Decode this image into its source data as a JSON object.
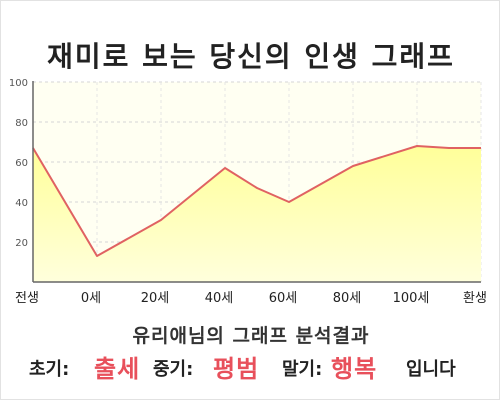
{
  "title": "재미로 보는 당신의 인생 그래프",
  "chart_data": {
    "type": "area",
    "title": "재미로 보는 당신의 인생 그래프",
    "categories": [
      "전생",
      "0세",
      "20세",
      "40세",
      "60세",
      "80세",
      "100세",
      "환생"
    ],
    "yticks": [
      20,
      40,
      60,
      80,
      100
    ],
    "ylim": [
      0,
      100
    ],
    "points": [
      {
        "x": "전생",
        "y": 67
      },
      {
        "x": 0,
        "y": 13
      },
      {
        "x": 20,
        "y": 31
      },
      {
        "x": 40,
        "y": 57
      },
      {
        "x": 50,
        "y": 47
      },
      {
        "x": 60,
        "y": 40
      },
      {
        "x": 80,
        "y": 58
      },
      {
        "x": 100,
        "y": 68
      },
      {
        "x": 110,
        "y": 67
      },
      {
        "x": "환생",
        "y": 67
      }
    ],
    "grid": true,
    "legend": "none",
    "line_color": "#e06262",
    "fill_color": "#ffffa8",
    "plot_background": "#fffff2"
  },
  "result": {
    "heading": "유리애님의 그래프 분석결과",
    "early_label": "초기:",
    "early_value": "출세",
    "middle_label": "중기:",
    "middle_value": "평범",
    "late_label": "말기:",
    "late_value": "행복",
    "suffix": "입니다",
    "highlight_color": "#e8505b"
  }
}
